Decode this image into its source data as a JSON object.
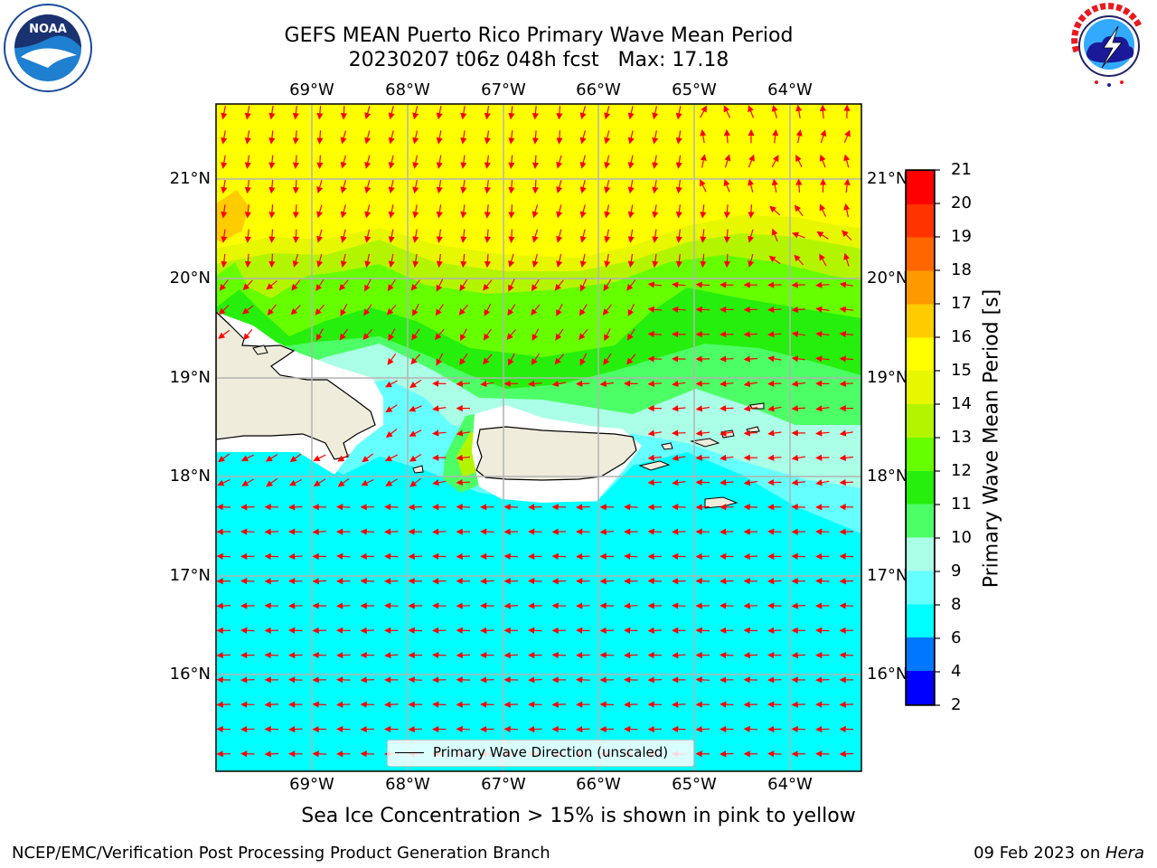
{
  "title": {
    "line1": "GEFS MEAN Puerto Rico Primary Wave Mean Period",
    "line2": "20230207 t06z 048h fcst   Max: 17.18"
  },
  "map": {
    "lon_labels": [
      "69°W",
      "68°W",
      "67°W",
      "66°W",
      "65°W",
      "64°W"
    ],
    "lat_labels": [
      "21°N",
      "20°N",
      "19°N",
      "18°N",
      "17°N",
      "16°N"
    ],
    "legend_label": "Primary Wave Direction (unscaled)",
    "arrow_color": "#ff0000",
    "land_color": "#efecdc",
    "coast_color": "#000000"
  },
  "colorbar": {
    "label": "Primary Wave Mean Period [s]",
    "ticks": [
      "21",
      "20",
      "19",
      "18",
      "17",
      "16",
      "15",
      "14",
      "13",
      "12",
      "11",
      "10",
      "9",
      "8",
      "6",
      "4",
      "2"
    ],
    "levels": [
      {
        "range": "2-4",
        "color": "#0000ff"
      },
      {
        "range": "4-6",
        "color": "#0077ff"
      },
      {
        "range": "6-8",
        "color": "#00ffff"
      },
      {
        "range": "8-9",
        "color": "#66ffff"
      },
      {
        "range": "9-10",
        "color": "#aaffe6"
      },
      {
        "range": "10-11",
        "color": "#4dff66"
      },
      {
        "range": "11-12",
        "color": "#26ee0d"
      },
      {
        "range": "12-13",
        "color": "#66ff00"
      },
      {
        "range": "13-14",
        "color": "#b3f500"
      },
      {
        "range": "14-15",
        "color": "#e6f700"
      },
      {
        "range": "15-16",
        "color": "#ffff00"
      },
      {
        "range": "16-17",
        "color": "#ffcc00"
      },
      {
        "range": "17-18",
        "color": "#ff9900"
      },
      {
        "range": "18-19",
        "color": "#ff6600"
      },
      {
        "range": "19-20",
        "color": "#ff3300"
      },
      {
        "range": "20-21",
        "color": "#ff0000"
      }
    ]
  },
  "sea_ice_note": "Sea Ice Concentration > 15% is shown in pink to yellow",
  "footer": {
    "left": "NCEP/EMC/Verification Post Processing Product Generation Branch",
    "right_date": "09 Feb 2023 on ",
    "right_host": "Hera"
  },
  "logos": {
    "noaa": "NOAA",
    "nws": "NATIONAL WEATHER SERVICE"
  }
}
